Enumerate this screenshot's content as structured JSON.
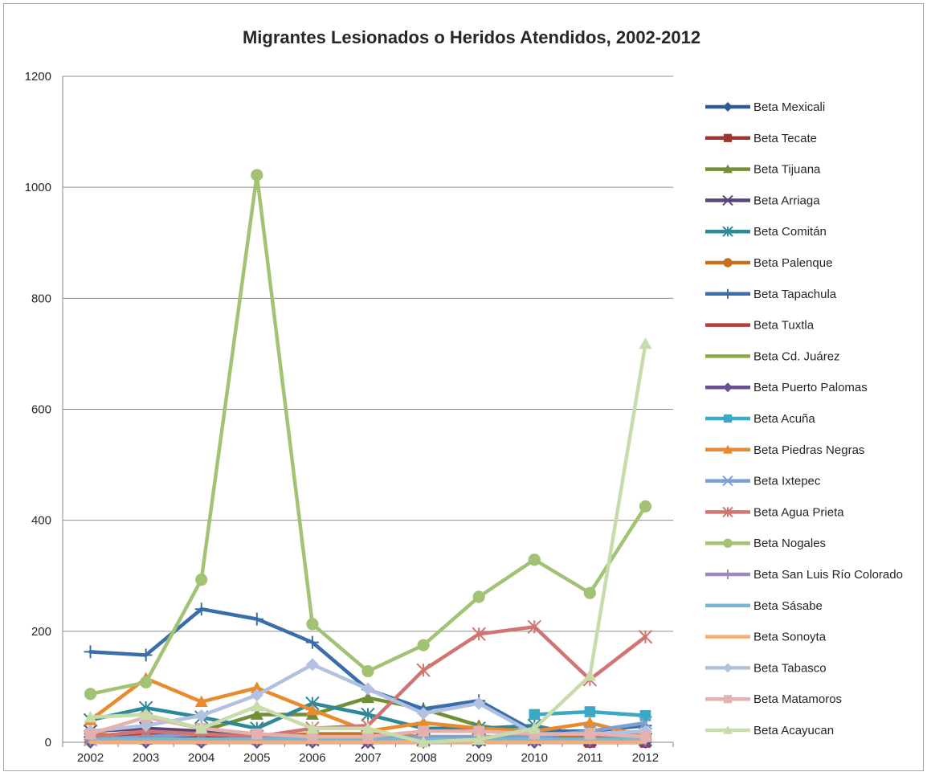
{
  "chart_data": {
    "type": "line",
    "title": "Migrantes Lesionados o Heridos Atendidos, 2002-2012",
    "xlabel": "",
    "ylabel": "",
    "categories": [
      "2002",
      "2003",
      "2004",
      "2005",
      "2006",
      "2007",
      "2008",
      "2009",
      "2010",
      "2011",
      "2012"
    ],
    "ylim": [
      0,
      1200
    ],
    "yticks": [
      0,
      200,
      400,
      600,
      800,
      1000,
      1200
    ],
    "grid": true,
    "legend_position": "right",
    "series": [
      {
        "name": "Beta Mexicali",
        "color": "#2e5b96",
        "marker": "diamond",
        "values": [
          5,
          0,
          0,
          0,
          0,
          0,
          0,
          0,
          0,
          0,
          0
        ]
      },
      {
        "name": "Beta Tecate",
        "color": "#9e3531",
        "marker": "square",
        "values": [
          5,
          10,
          5,
          5,
          5,
          5,
          5,
          5,
          5,
          0,
          0
        ]
      },
      {
        "name": "Beta Tijuana",
        "color": "#718f35",
        "marker": "triangle",
        "values": [
          10,
          5,
          20,
          50,
          50,
          80,
          60,
          30,
          15,
          10,
          10
        ]
      },
      {
        "name": "Beta Arriaga",
        "color": "#5a4479",
        "marker": "x",
        "values": [
          20,
          25,
          20,
          10,
          5,
          0,
          5,
          5,
          5,
          5,
          5
        ]
      },
      {
        "name": "Beta Comitán",
        "color": "#2e8898",
        "marker": "asterisk",
        "values": [
          40,
          62,
          45,
          25,
          70,
          50,
          25,
          25,
          30,
          10,
          5
        ]
      },
      {
        "name": "Beta Palenque",
        "color": "#c9701f",
        "marker": "circle",
        "values": [
          15,
          10,
          10,
          10,
          15,
          15,
          10,
          10,
          10,
          10,
          10
        ]
      },
      {
        "name": "Beta Tapachula",
        "color": "#3a6eab",
        "marker": "plus",
        "values": [
          163,
          157,
          240,
          222,
          180,
          95,
          60,
          75,
          20,
          20,
          30
        ]
      },
      {
        "name": "Beta Tuxtla",
        "color": "#b83c37",
        "marker": "none",
        "values": [
          10,
          15,
          10,
          10,
          10,
          5,
          5,
          5,
          5,
          5,
          5
        ]
      },
      {
        "name": "Beta Cd. Juárez",
        "color": "#89ad41",
        "marker": "none",
        "values": [
          10,
          5,
          5,
          5,
          5,
          5,
          5,
          5,
          5,
          5,
          5
        ]
      },
      {
        "name": "Beta Puerto Palomas",
        "color": "#6c4f93",
        "marker": "diamond",
        "values": [
          0,
          0,
          0,
          0,
          0,
          0,
          0,
          0,
          0,
          0,
          0
        ]
      },
      {
        "name": "Beta Acuña",
        "color": "#3ba8c4",
        "marker": "square",
        "values": [
          null,
          null,
          null,
          null,
          null,
          null,
          null,
          null,
          50,
          55,
          48
        ]
      },
      {
        "name": "Beta Piedras Negras",
        "color": "#ea8a2f",
        "marker": "triangle",
        "values": [
          40,
          115,
          73,
          98,
          58,
          20,
          35,
          25,
          20,
          35,
          10
        ]
      },
      {
        "name": "Beta Ixtepec",
        "color": "#7f9fd0",
        "marker": "x",
        "values": [
          5,
          10,
          15,
          10,
          10,
          10,
          10,
          10,
          10,
          20,
          35
        ]
      },
      {
        "name": "Beta Agua Prieta",
        "color": "#d07572",
        "marker": "asterisk",
        "values": [
          10,
          20,
          15,
          10,
          25,
          30,
          130,
          195,
          208,
          113,
          190
        ]
      },
      {
        "name": "Beta Nogales",
        "color": "#a2c374",
        "marker": "circle",
        "values": [
          87,
          108,
          293,
          1022,
          213,
          128,
          175,
          262,
          329,
          269,
          425
        ]
      },
      {
        "name": "Beta San Luis Río Colorado",
        "color": "#9b89bd",
        "marker": "plus",
        "values": [
          5,
          5,
          5,
          5,
          5,
          5,
          5,
          5,
          5,
          5,
          5
        ]
      },
      {
        "name": "Beta Sásabe",
        "color": "#77b8d4",
        "marker": "none",
        "values": [
          5,
          5,
          5,
          5,
          5,
          5,
          5,
          5,
          5,
          5,
          5
        ]
      },
      {
        "name": "Beta Sonoyta",
        "color": "#f6ad78",
        "marker": "none",
        "values": [
          0,
          0,
          0,
          0,
          0,
          0,
          0,
          0,
          0,
          0,
          0
        ]
      },
      {
        "name": "Beta Tabasco",
        "color": "#b3c1e0",
        "marker": "diamond",
        "values": [
          20,
          30,
          48,
          85,
          140,
          96,
          52,
          70,
          15,
          15,
          20
        ]
      },
      {
        "name": "Beta Matamoros",
        "color": "#e3b2b0",
        "marker": "square",
        "values": [
          15,
          45,
          25,
          15,
          10,
          10,
          20,
          20,
          15,
          15,
          10
        ]
      },
      {
        "name": "Beta Acayucan",
        "color": "#c8dbab",
        "marker": "triangle",
        "values": [
          45,
          50,
          25,
          65,
          25,
          25,
          0,
          5,
          25,
          120,
          718
        ]
      }
    ]
  }
}
